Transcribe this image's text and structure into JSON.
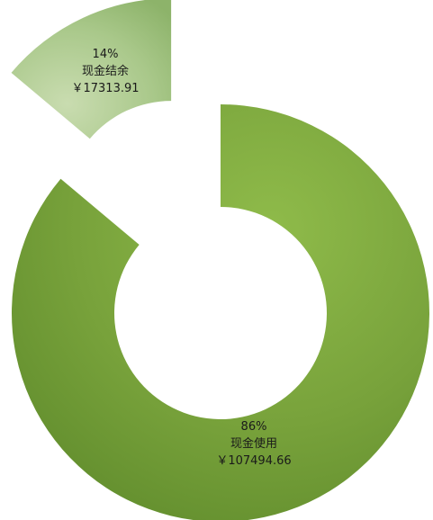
{
  "chart_data": {
    "type": "pie",
    "variant": "donut-exploded",
    "slices": [
      {
        "percent_label": "86%",
        "name": "现金使用",
        "value_label": "￥107494.66",
        "value": 107494.66,
        "percent": 86,
        "color": "#7aa33d",
        "exploded": false
      },
      {
        "percent_label": "14%",
        "name": "现金结余",
        "value_label": "￥17313.91",
        "value": 17313.91,
        "percent": 14,
        "color": "#a9c88a",
        "exploded": true
      }
    ],
    "legend": "none",
    "grid": false
  }
}
